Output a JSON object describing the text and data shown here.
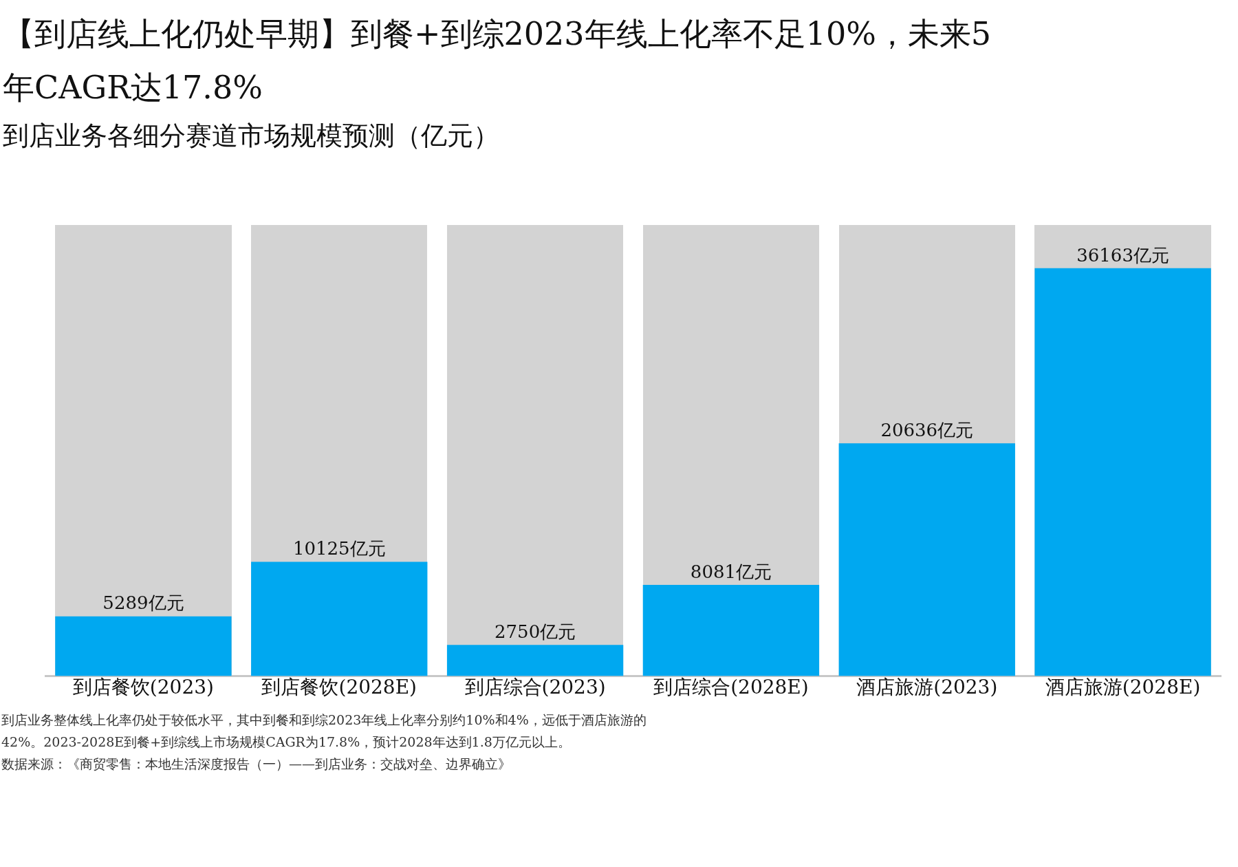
{
  "chart_data": {
    "type": "bar",
    "title": "【到店线上化仍处早期】到餐+到综2023年线上化率不足10%，未来5年CAGR达17.8%",
    "subtitle": "到店业务各细分赛道市场规模预测（亿元）",
    "categories": [
      "到店餐饮(2023)",
      "到店餐饮(2028E)",
      "到店综合(2023)",
      "到店综合(2028E)",
      "酒店旅游(2023)",
      "酒店旅游(2028E)"
    ],
    "values": [
      5289,
      10125,
      2750,
      8081,
      20636,
      36163
    ],
    "value_labels": [
      "5289亿元",
      "10125亿元",
      "2750亿元",
      "8081亿元",
      "20636亿元",
      "36163亿元"
    ],
    "color": "#00a8f0",
    "ylim": [
      0,
      40000
    ],
    "tick_labels": "x",
    "grid": false,
    "legend": false,
    "annotations": [
      "到店业务整体线上化率仍处于较低水平，其中到餐和到综2023年线上化率分别约10%和4%，远低于酒店旅游的42%。2023-2028E到餐+到综线上市场规模CAGR为17.8%，预计2028年达到1.8万亿元以上。",
      "数据来源：《商贸零售：本地生活深度报告（一）——到店业务：交战对垒、边界确立》"
    ]
  }
}
